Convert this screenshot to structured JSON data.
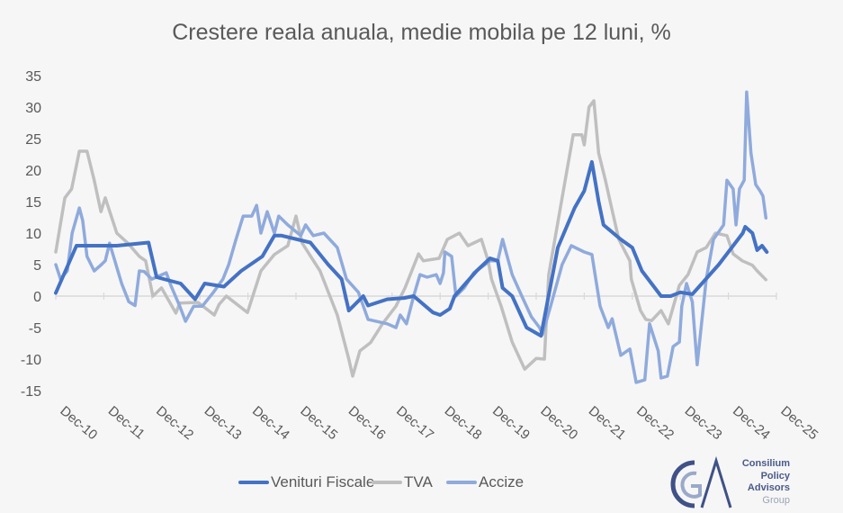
{
  "chart_data": {
    "type": "line",
    "title": "Crestere reala anuala, medie mobila pe 12 luni, %",
    "xlabel": "",
    "ylabel": "",
    "ylim": [
      -15,
      35
    ],
    "yticks": [
      "35",
      "30",
      "25",
      "20",
      "15",
      "10",
      "5",
      "0",
      "-5",
      "-10",
      "-15"
    ],
    "ytick_values": [
      35,
      30,
      25,
      20,
      15,
      10,
      5,
      0,
      -5,
      -10,
      -15
    ],
    "xticks": [
      "Dec-10",
      "Dec-11",
      "Dec-12",
      "Dec-13",
      "Dec-14",
      "Dec-15",
      "Dec-16",
      "Dec-17",
      "Dec-18",
      "Dec-19",
      "Dec-20",
      "Dec-21",
      "Dec-22",
      "Dec-23",
      "Dec-24",
      "Dec-25"
    ],
    "x_unit": "years since Dec-10",
    "xlim": [
      0,
      15
    ],
    "grid": false,
    "legend_position": "bottom",
    "series": [
      {
        "name": "Venituri Fiscale",
        "color": "#4472c4",
        "width": 4,
        "x": [
          0,
          0.43,
          1.27,
          1.93,
          2.1,
          2.6,
          2.9,
          3.1,
          3.5,
          3.86,
          4.3,
          4.55,
          4.7,
          5.3,
          5.67,
          5.95,
          6.1,
          6.4,
          6.5,
          6.9,
          7.25,
          7.45,
          7.85,
          8.0,
          8.2,
          8.3,
          8.76,
          9.04,
          9.2,
          9.3,
          9.5,
          9.8,
          10.1,
          10.45,
          10.8,
          11.0,
          11.16,
          11.3,
          11.4,
          11.76,
          12.0,
          12.2,
          12.6,
          12.8,
          13.0,
          13.25,
          13.45,
          13.8,
          14.0,
          14.3,
          14.35,
          14.5,
          14.6,
          14.7,
          14.8
        ],
        "y": [
          0.5,
          8,
          8,
          8.5,
          3,
          2,
          -0.5,
          2,
          1.5,
          4,
          6.3,
          9.6,
          9.6,
          8.5,
          5,
          2.7,
          -2.3,
          0,
          -1.5,
          -0.5,
          -0.3,
          0,
          -2.6,
          -3,
          -2,
          0,
          4,
          6,
          5.6,
          1.3,
          0,
          -5,
          -6.3,
          7.7,
          14,
          16.7,
          21.3,
          15,
          11.3,
          9,
          7.7,
          4,
          0,
          0,
          0.6,
          0.3,
          2,
          5,
          7,
          10,
          11,
          10,
          7.3,
          8,
          7
        ]
      },
      {
        "name": "TVA",
        "color": "#bfbfbf",
        "width": 3.5,
        "x": [
          0,
          0.19,
          0.33,
          0.49,
          0.65,
          0.8,
          0.94,
          1.03,
          1.27,
          1.5,
          1.74,
          1.87,
          2.02,
          2.2,
          2.5,
          2.58,
          2.96,
          3.3,
          3.4,
          3.55,
          3.99,
          4.27,
          4.55,
          4.83,
          5.0,
          5.13,
          5.5,
          5.86,
          6.1,
          6.18,
          6.33,
          6.55,
          6.8,
          7.08,
          7.27,
          7.55,
          7.65,
          7.98,
          8.15,
          8.4,
          8.58,
          8.86,
          9.0,
          9.07,
          9.27,
          9.5,
          9.76,
          10.0,
          10.17,
          10.26,
          10.54,
          10.77,
          10.95,
          11.0,
          11.1,
          11.2,
          11.3,
          11.44,
          11.57,
          11.72,
          11.95,
          11.98,
          12.17,
          12.28,
          12.4,
          12.6,
          12.75,
          12.98,
          13.16,
          13.35,
          13.54,
          13.73,
          13.97,
          14.1,
          14.29,
          14.5,
          14.6,
          14.78
        ],
        "y": [
          7,
          15.6,
          17,
          23,
          23,
          18.4,
          13.4,
          15.6,
          10,
          8.4,
          6.3,
          5.6,
          0,
          1.3,
          -2.7,
          -1.1,
          -1,
          -3,
          -1.3,
          0,
          -2.6,
          4,
          6.6,
          8,
          12.7,
          8.4,
          4,
          -3,
          -10,
          -12.7,
          -8.7,
          -7.4,
          -4.4,
          -1.6,
          1.3,
          6.7,
          5.6,
          6,
          9,
          10,
          8,
          9,
          5.6,
          2.7,
          -1.6,
          -7.3,
          -11.6,
          -9.9,
          -10,
          3.4,
          15.6,
          25.6,
          25.6,
          24,
          30,
          31,
          22.7,
          18.4,
          14,
          9,
          5.6,
          2.7,
          -2.3,
          -3.7,
          -3.9,
          -2.3,
          -4.4,
          1.7,
          3.4,
          7,
          7.7,
          10,
          9.6,
          6.7,
          5.6,
          4.9,
          4,
          2.6
        ]
      },
      {
        "name": "Accize",
        "color": "#8faadc",
        "width": 3.5,
        "x": [
          0,
          0.1,
          0.24,
          0.34,
          0.49,
          0.56,
          0.65,
          0.8,
          0.95,
          1.03,
          1.12,
          1.37,
          1.52,
          1.65,
          1.74,
          1.84,
          2.0,
          2.3,
          2.4,
          2.58,
          2.7,
          2.87,
          3.05,
          3.28,
          3.48,
          3.6,
          3.75,
          3.9,
          4.08,
          4.18,
          4.27,
          4.4,
          4.55,
          4.64,
          4.83,
          5.1,
          5.2,
          5.36,
          5.58,
          5.86,
          6.05,
          6.3,
          6.5,
          6.9,
          7.08,
          7.17,
          7.3,
          7.45,
          7.58,
          7.73,
          7.92,
          8.0,
          8.07,
          8.1,
          8.24,
          8.33,
          8.5,
          8.7,
          9.04,
          9.2,
          9.3,
          9.5,
          9.7,
          9.9,
          10.07,
          10.13,
          10.3,
          10.54,
          10.73,
          11.0,
          11.16,
          11.33,
          11.5,
          11.58,
          11.76,
          11.95,
          12.08,
          12.26,
          12.36,
          12.54,
          12.6,
          12.73,
          12.85,
          12.98,
          13.03,
          13.13,
          13.25,
          13.35,
          13.54,
          13.69,
          13.9,
          13.97,
          14.1,
          14.16,
          14.23,
          14.33,
          14.38,
          14.47,
          14.57,
          14.66,
          14.72,
          14.78
        ],
        "y": [
          5,
          2.7,
          4,
          10,
          14,
          12,
          6.3,
          4,
          5,
          5.6,
          8.4,
          2,
          -0.9,
          -1.5,
          4,
          3.9,
          2.7,
          3.7,
          1.6,
          -1.6,
          -4,
          -1.6,
          -1.6,
          0.6,
          2.7,
          5,
          9,
          12.7,
          12.7,
          14.4,
          10,
          13.4,
          10,
          12.7,
          11.3,
          9.6,
          11.3,
          9.6,
          10,
          7.7,
          2.7,
          0.6,
          -3.7,
          -4.4,
          -5,
          -3,
          -4.4,
          0,
          3.4,
          3,
          3.4,
          2,
          3.7,
          7,
          6.3,
          0,
          1.3,
          3.7,
          5.6,
          5.6,
          9,
          3.4,
          0,
          -3.3,
          -5,
          -6.1,
          -1.6,
          5,
          8,
          7,
          6.6,
          -1.6,
          -5,
          -3.6,
          -9.4,
          -8.4,
          -13.7,
          -13.3,
          -4.4,
          -8.7,
          -13,
          -12.7,
          -8,
          -7.3,
          -1.6,
          2,
          -0.9,
          -10.9,
          2.7,
          9,
          11.3,
          18.4,
          17,
          11.3,
          17,
          18.4,
          32.4,
          22.7,
          17.7,
          16.7,
          15.9,
          12.4
        ]
      }
    ]
  },
  "logo": {
    "line1": "Consilium",
    "line2": "Policy",
    "line3": "Advisors",
    "line4": "Group"
  }
}
